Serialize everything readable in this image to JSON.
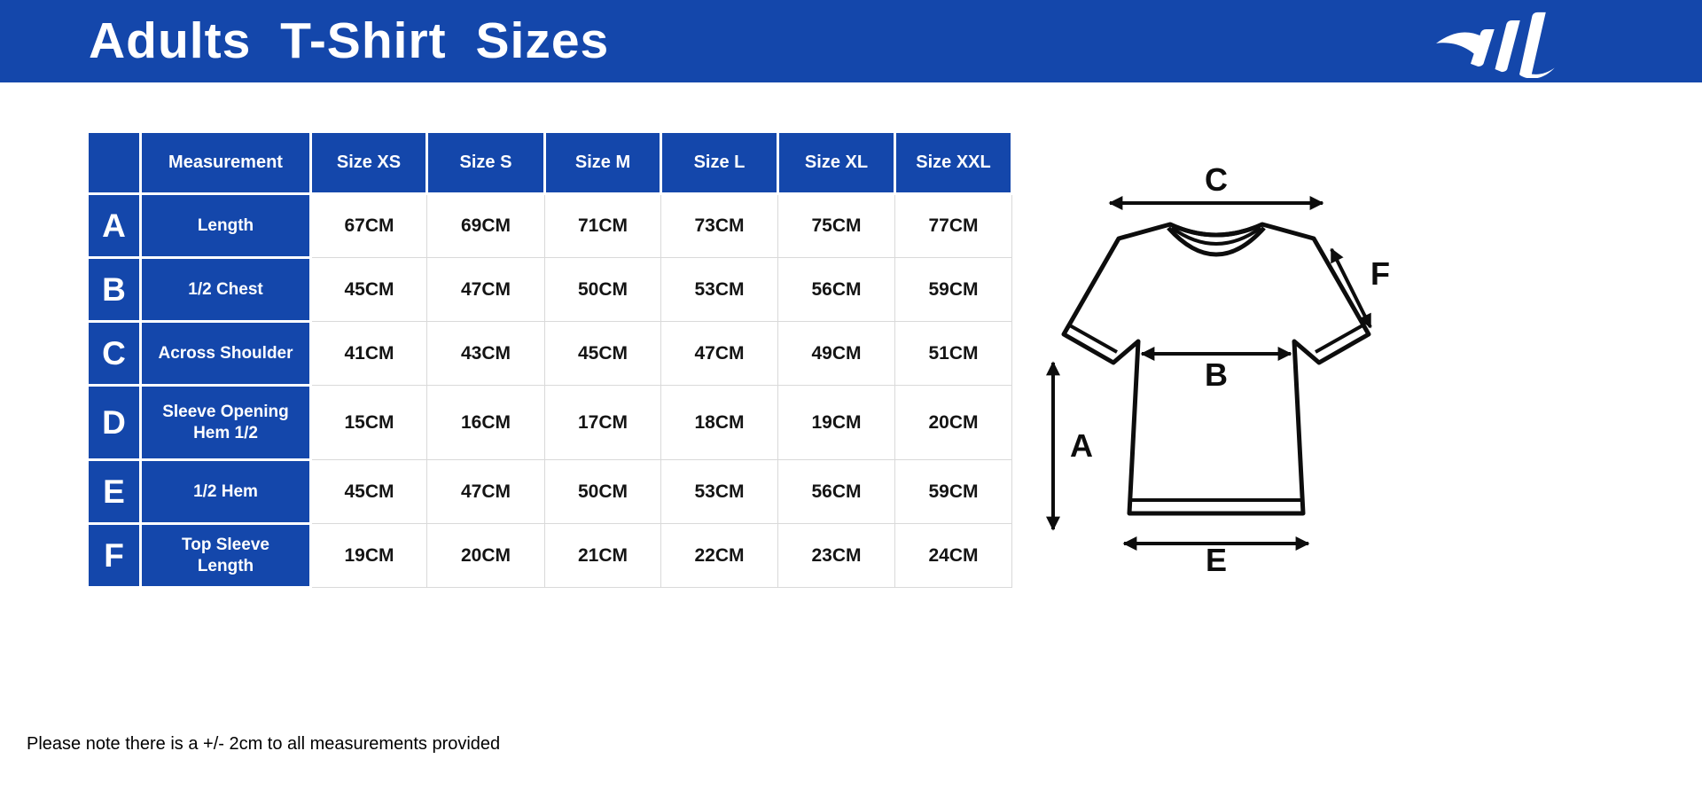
{
  "header": {
    "title": "Adults  T-Shirt Sizes",
    "logo_name": "brand-swoosh-m-logo"
  },
  "chart_data": {
    "type": "table",
    "title": "Adults T-Shirt Sizes",
    "columns": [
      "",
      "Measurement",
      "Size XS",
      "Size S",
      "Size M",
      "Size L",
      "Size XL",
      "Size XXL"
    ],
    "rows": [
      {
        "letter": "A",
        "measurement": "Length",
        "values": [
          "67CM",
          "69CM",
          "71CM",
          "73CM",
          "75CM",
          "77CM"
        ]
      },
      {
        "letter": "B",
        "measurement": "1/2 Chest",
        "values": [
          "45CM",
          "47CM",
          "50CM",
          "53CM",
          "56CM",
          "59CM"
        ]
      },
      {
        "letter": "C",
        "measurement": "Across Shoulder",
        "values": [
          "41CM",
          "43CM",
          "45CM",
          "47CM",
          "49CM",
          "51CM"
        ]
      },
      {
        "letter": "D",
        "measurement": "Sleeve Opening Hem 1/2",
        "values": [
          "15CM",
          "16CM",
          "17CM",
          "18CM",
          "19CM",
          "20CM"
        ]
      },
      {
        "letter": "E",
        "measurement": "1/2 Hem",
        "values": [
          "45CM",
          "47CM",
          "50CM",
          "53CM",
          "56CM",
          "59CM"
        ]
      },
      {
        "letter": "F",
        "measurement": "Top Sleeve Length",
        "values": [
          "19CM",
          "20CM",
          "21CM",
          "22CM",
          "23CM",
          "24CM"
        ]
      }
    ],
    "units": "CM"
  },
  "diagram": {
    "label_a": "A",
    "label_b": "B",
    "label_c": "C",
    "label_e": "E",
    "label_f": "F"
  },
  "footnote": "Please note there is a +/- 2cm to all measurements provided",
  "colors": {
    "brand_blue": "#1447AB",
    "cell_text": "#141414",
    "grid_line": "#D9D9D9",
    "line_black": "#0D0D0D"
  }
}
